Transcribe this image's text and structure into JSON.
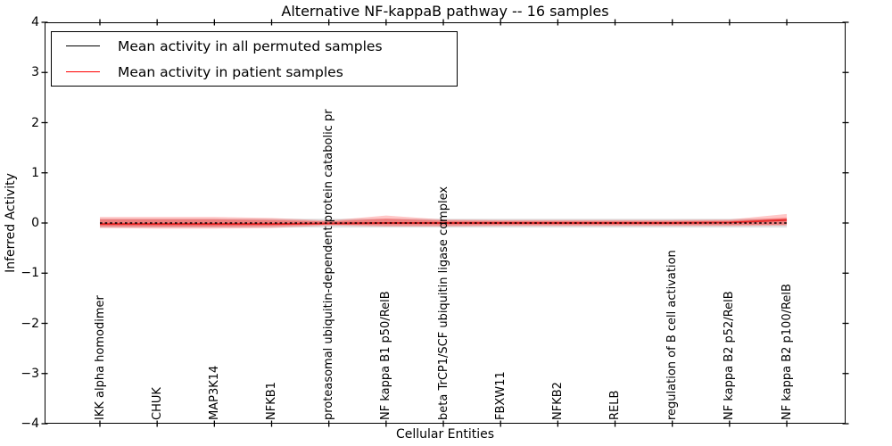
{
  "title": "Alternative NF-kappaB pathway -- 16 samples",
  "legend": {
    "items": [
      {
        "label": "Mean activity in all permuted samples",
        "color": "#000000"
      },
      {
        "label": "Mean activity in patient samples",
        "color": "#ff0000"
      }
    ]
  },
  "y_axis": {
    "label": "Inferred Activity",
    "ticks": [
      "4",
      "3",
      "2",
      "1",
      "0",
      "−1",
      "−2",
      "−3",
      "−4"
    ]
  },
  "x_axis": {
    "label": "Cellular Entities",
    "categories": [
      "IKK alpha homodimer",
      "CHUK",
      "MAP3K14",
      "NFKB1",
      "proteasomal ubiquitin-dependent protein catabolic pr",
      "NF kappa B1 p50/RelB",
      "beta TrCP1/SCF ubiquitin ligase complex",
      "FBXW11",
      "NFKB2",
      "RELB",
      "regulation of B cell activation",
      "NF kappa B2 p52/RelB",
      "NF kappa B2 p100/RelB"
    ]
  },
  "chart_data": {
    "type": "line",
    "title": "Alternative NF-kappaB pathway -- 16 samples",
    "xlabel": "Cellular Entities",
    "ylabel": "Inferred Activity",
    "ylim": [
      -4,
      4
    ],
    "grid": false,
    "legend_position": "upper left",
    "categories": [
      "IKK alpha homodimer",
      "CHUK",
      "MAP3K14",
      "NFKB1",
      "proteasomal ubiquitin-dependent protein catabolic pr",
      "NF kappa B1 p50/RelB",
      "beta TrCP1/SCF ubiquitin ligase complex",
      "FBXW11",
      "NFKB2",
      "RELB",
      "regulation of B cell activation",
      "NF kappa B2 p52/RelB",
      "NF kappa B2 p100/RelB"
    ],
    "series": [
      {
        "name": "Mean activity in all permuted samples",
        "color": "#000000",
        "style": "dashed",
        "values": [
          0,
          0,
          0,
          0,
          0,
          0,
          0,
          0,
          0,
          0,
          0,
          0,
          0
        ]
      },
      {
        "name": "Mean activity in patient samples",
        "color": "#e62a2a",
        "style": "solid",
        "values": [
          -0.02,
          -0.02,
          -0.02,
          -0.02,
          -0.01,
          0,
          0,
          0,
          0,
          0,
          0,
          0.01,
          0.06
        ]
      }
    ],
    "bands": [
      {
        "name": "permuted-samples-std",
        "color": "#bbbbbb",
        "opacity": 0.45,
        "upper": [
          0.085,
          0.085,
          0.085,
          0.085,
          0.085,
          0.085,
          0.085,
          0.085,
          0.085,
          0.085,
          0.085,
          0.085,
          0.085
        ],
        "lower": [
          -0.09,
          -0.09,
          -0.09,
          -0.09,
          -0.09,
          -0.09,
          -0.09,
          -0.09,
          -0.09,
          -0.09,
          -0.09,
          -0.09,
          -0.09
        ]
      },
      {
        "name": "patient-samples-std-outer",
        "color": "#ff0000",
        "opacity": 0.22,
        "upper": [
          0.12,
          0.12,
          0.12,
          0.1,
          0.05,
          0.15,
          0.07,
          0.06,
          0.06,
          0.06,
          0.06,
          0.07,
          0.18
        ],
        "lower": [
          -0.1,
          -0.11,
          -0.11,
          -0.1,
          -0.05,
          -0.07,
          -0.07,
          -0.06,
          -0.06,
          -0.06,
          -0.06,
          -0.06,
          -0.05
        ]
      },
      {
        "name": "patient-samples-std-inner",
        "color": "#ff0000",
        "opacity": 0.28,
        "upper": [
          0.075,
          0.075,
          0.075,
          0.06,
          0.03,
          0.09,
          0.045,
          0.04,
          0.04,
          0.04,
          0.04,
          0.045,
          0.11
        ],
        "lower": [
          -0.065,
          -0.07,
          -0.07,
          -0.06,
          -0.03,
          -0.045,
          -0.045,
          -0.04,
          -0.04,
          -0.04,
          -0.04,
          -0.04,
          -0.03
        ]
      }
    ]
  }
}
